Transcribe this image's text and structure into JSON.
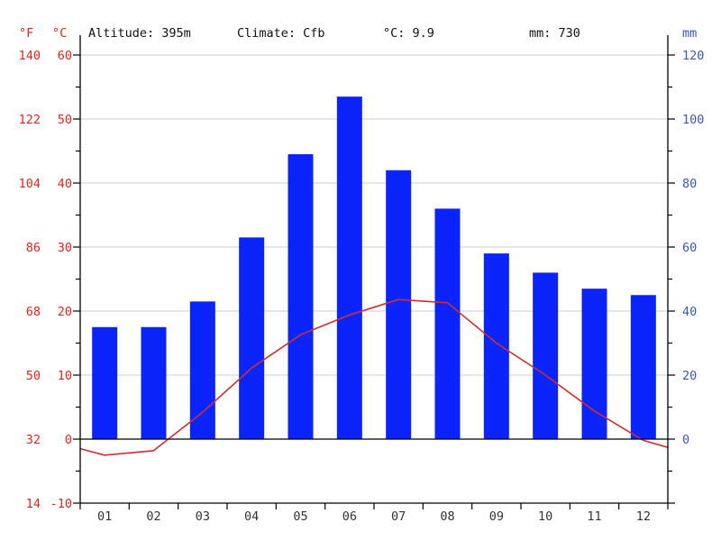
{
  "header": {
    "unit_f": "°F",
    "unit_c": "°C",
    "unit_mm": "mm",
    "altitude": "Altitude: 395m",
    "climate": "Climate: Cfb",
    "mean_temp": "°C: 9.9",
    "annual_precip": "mm: 730"
  },
  "colors": {
    "bar": "#0b24fb",
    "line": "#cd2f2f",
    "red_text": "#e1251b",
    "blue_text": "#3a57b0",
    "month_text": "#333333",
    "grid": "#cccccc",
    "axis": "#000000"
  },
  "chart_data": {
    "type": "bar",
    "categories": [
      "01",
      "02",
      "03",
      "04",
      "05",
      "06",
      "07",
      "08",
      "09",
      "10",
      "11",
      "12"
    ],
    "series": [
      {
        "name": "Precipitation",
        "type": "bar",
        "unit": "mm",
        "axis": "right",
        "values": [
          35,
          35,
          43,
          63,
          89,
          107,
          84,
          72,
          58,
          52,
          47,
          45
        ]
      },
      {
        "name": "Temperature",
        "type": "line",
        "unit": "°C",
        "axis": "left",
        "values": [
          -2.5,
          -1.8,
          4.2,
          11.1,
          16.3,
          19.4,
          21.8,
          21.3,
          15.0,
          10.0,
          4.4,
          -0.2
        ],
        "edge_start": -1.5,
        "edge_end": -1.3
      }
    ],
    "axes": {
      "left_f": {
        "unit": "°F",
        "ticks": [
          140,
          122,
          104,
          86,
          68,
          50,
          32,
          14
        ]
      },
      "left_c": {
        "unit": "°C",
        "ticks": [
          60,
          50,
          40,
          30,
          20,
          10,
          0,
          -10
        ],
        "min": -10,
        "max": 63
      },
      "right_mm": {
        "unit": "mm",
        "ticks": [
          120,
          100,
          80,
          60,
          40,
          20,
          0
        ],
        "min": -20,
        "max": 126
      }
    },
    "grid": true,
    "legend": false
  }
}
